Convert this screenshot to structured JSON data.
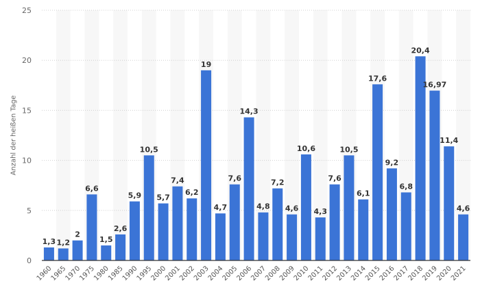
{
  "chart_data": {
    "type": "bar",
    "title": "",
    "xlabel": "",
    "ylabel": "Anzahl der heißen Tage",
    "ylim": [
      0,
      25
    ],
    "yticks": [
      0,
      5,
      10,
      15,
      20,
      25
    ],
    "grid": true,
    "legend": null,
    "bar_color": "#3b74d6",
    "categories": [
      "1960",
      "1965",
      "1970",
      "1975",
      "1980",
      "1985",
      "1990",
      "1995",
      "2000",
      "2001",
      "2002",
      "2003",
      "2004",
      "2005",
      "2006",
      "2007",
      "2008",
      "2009",
      "2010",
      "2011",
      "2012",
      "2013",
      "2014",
      "2015",
      "2016",
      "2017",
      "2018",
      "2019",
      "2020",
      "2021"
    ],
    "values": [
      1.3,
      1.2,
      2,
      6.6,
      1.5,
      2.6,
      5.9,
      10.5,
      5.7,
      7.4,
      6.2,
      19,
      4.7,
      7.6,
      14.3,
      4.8,
      7.2,
      4.6,
      10.6,
      4.3,
      7.6,
      10.5,
      6.1,
      17.6,
      9.2,
      6.8,
      20.4,
      16.97,
      11.4,
      4.6
    ],
    "value_labels": [
      "1,3",
      "1,2",
      "2",
      "6,6",
      "1,5",
      "2,6",
      "5,9",
      "10,5",
      "5,7",
      "7,4",
      "6,2",
      "19",
      "4,7",
      "7,6",
      "14,3",
      "4,8",
      "7,2",
      "4,6",
      "10,6",
      "4,3",
      "7,6",
      "10,5",
      "6,1",
      "17,6",
      "9,2",
      "6,8",
      "20,4",
      "16,97",
      "11,4",
      "4,6"
    ]
  }
}
